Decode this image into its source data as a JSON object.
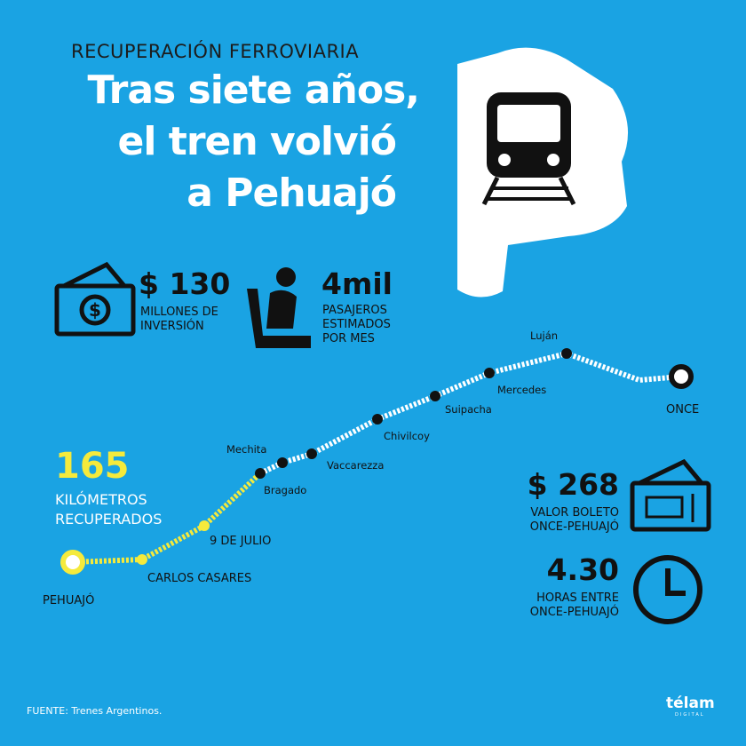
{
  "header": {
    "kicker": "RECUPERACIÓN FERROVIARIA",
    "title_lines": [
      "Tras siete años,",
      "el tren volvió",
      "a Pehuajó"
    ]
  },
  "stats": [
    {
      "value": "$ 130",
      "label_lines": [
        "MILLONES DE",
        "INVERSIÓN"
      ]
    },
    {
      "value": "4mil",
      "label_lines": [
        "PASAJEROS",
        "ESTIMADOS",
        "POR MES"
      ]
    },
    {
      "value": "165",
      "label_lines": [
        "KILÓMETROS",
        "RECUPERADOS"
      ]
    },
    {
      "value": "$ 268",
      "label_lines": [
        "VALOR BOLETO",
        "ONCE-PEHUAJÓ"
      ]
    },
    {
      "value": "4.30",
      "label_lines": [
        "HORAS ENTRE",
        "ONCE-PEHUAJÓ"
      ]
    }
  ],
  "stations": [
    "PEHUAJÓ",
    "CARLOS CASARES",
    "9 DE JULIO",
    "Bragado",
    "Mechita",
    "Vaccarezza",
    "Chivilcoy",
    "Suipacha",
    "Mercedes",
    "Luján",
    "ONCE"
  ],
  "footer": {
    "source": "FUENTE: Trenes Argentinos.",
    "brand": "télam",
    "brand_sub": "DIGITAL"
  }
}
